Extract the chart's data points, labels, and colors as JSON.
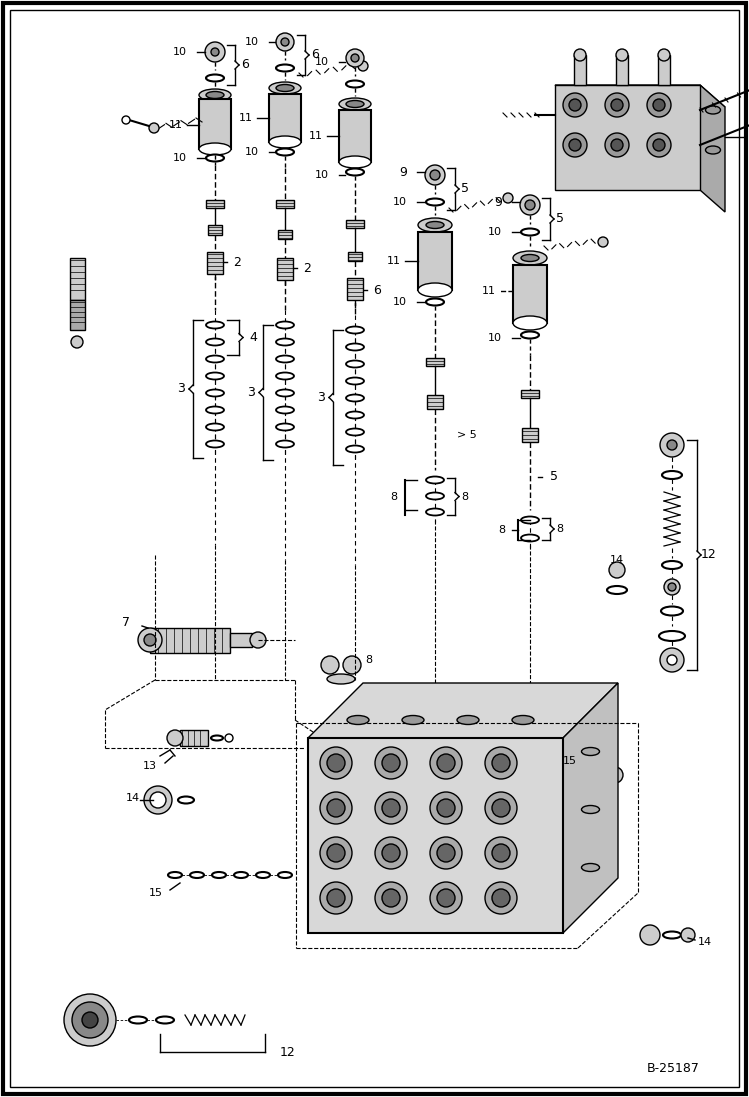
{
  "bg_color": "#ffffff",
  "border_color": "#000000",
  "fig_width": 7.49,
  "fig_height": 10.97,
  "dpi": 100,
  "part_number": "B-25187",
  "lw": 1.0,
  "lw_thick": 1.5,
  "lw_border": 3.0
}
